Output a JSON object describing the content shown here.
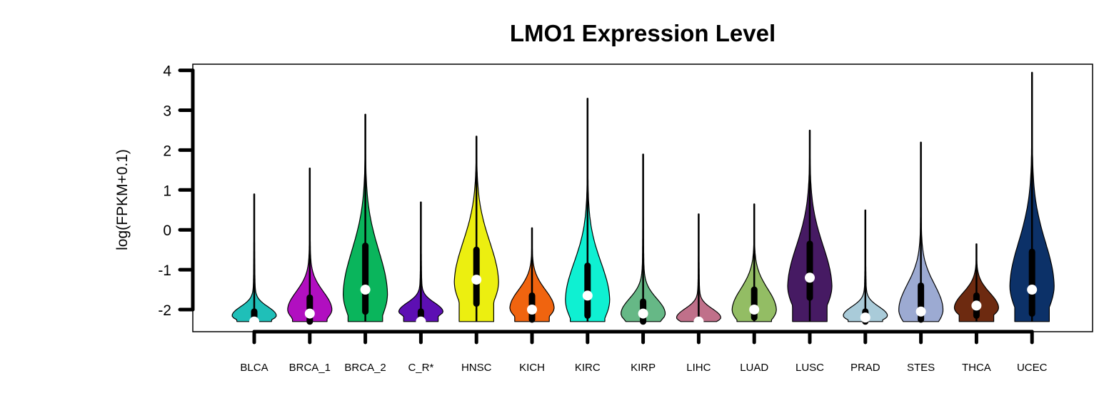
{
  "chart_data": {
    "type": "violin",
    "title": "LMO1 Expression Level",
    "xlabel": "",
    "ylabel": "log(FPKM+0.1)",
    "ylim": [
      -2.55,
      4.15
    ],
    "yticks": [
      -2,
      -1,
      0,
      1,
      2,
      3,
      4
    ],
    "grid": false,
    "legend": "none",
    "categories": [
      "BLCA",
      "BRCA_1",
      "BRCA_2",
      "C_R*",
      "HNSC",
      "KICH",
      "KIRC",
      "KIRP",
      "LIHC",
      "LUAD",
      "LUSC",
      "PRAD",
      "STES",
      "THCA",
      "UCEC"
    ],
    "series": [
      {
        "category": "BLCA",
        "color": "#1fbfb8",
        "min": -2.3,
        "max": 0.9,
        "q1": -2.3,
        "median": -2.3,
        "q3": -2.05,
        "peak": -2.15
      },
      {
        "category": "BRCA_1",
        "color": "#b10fc0",
        "min": -2.3,
        "max": 1.55,
        "q1": -2.3,
        "median": -2.1,
        "q3": -1.7,
        "peak": -2.0
      },
      {
        "category": "BRCA_2",
        "color": "#0ab55c",
        "min": -2.3,
        "max": 2.9,
        "q1": -2.05,
        "median": -1.5,
        "q3": -0.4,
        "peak": -1.6
      },
      {
        "category": "C_R*",
        "color": "#5d0fb3",
        "min": -2.3,
        "max": 0.7,
        "q1": -2.3,
        "median": -2.3,
        "q3": -2.05,
        "peak": -2.05
      },
      {
        "category": "HNSC",
        "color": "#ecef10",
        "min": -2.3,
        "max": 2.35,
        "q1": -1.85,
        "median": -1.25,
        "q3": -0.5,
        "peak": -1.3
      },
      {
        "category": "KICH",
        "color": "#f0640f",
        "min": -2.3,
        "max": 0.05,
        "q1": -2.25,
        "median": -2.0,
        "q3": -1.65,
        "peak": -1.95
      },
      {
        "category": "KIRC",
        "color": "#0ff0d2",
        "min": -2.3,
        "max": 3.3,
        "q1": -2.15,
        "median": -1.65,
        "q3": -0.9,
        "peak": -1.75
      },
      {
        "category": "KIRP",
        "color": "#66b886",
        "min": -2.3,
        "max": 1.9,
        "q1": -2.3,
        "median": -2.1,
        "q3": -1.8,
        "peak": -2.1
      },
      {
        "category": "LIHC",
        "color": "#c0708a",
        "min": -2.3,
        "max": 0.4,
        "q1": -2.3,
        "median": -2.3,
        "q3": -2.3,
        "peak": -2.2
      },
      {
        "category": "LUAD",
        "color": "#93bd64",
        "min": -2.3,
        "max": 0.65,
        "q1": -2.2,
        "median": -2.0,
        "q3": -1.5,
        "peak": -2.0
      },
      {
        "category": "LUSC",
        "color": "#461a63",
        "min": -2.3,
        "max": 2.5,
        "q1": -1.7,
        "median": -1.2,
        "q3": -0.35,
        "peak": -1.4
      },
      {
        "category": "PRAD",
        "color": "#a9cbd9",
        "min": -2.3,
        "max": 0.5,
        "q1": -2.3,
        "median": -2.2,
        "q3": -2.05,
        "peak": -2.15
      },
      {
        "category": "STES",
        "color": "#9caad2",
        "min": -2.3,
        "max": 2.2,
        "q1": -2.25,
        "median": -2.05,
        "q3": -1.4,
        "peak": -2.0
      },
      {
        "category": "THCA",
        "color": "#6d2a10",
        "min": -2.3,
        "max": -0.35,
        "q1": -2.15,
        "median": -1.9,
        "q3": -1.65,
        "peak": -1.95
      },
      {
        "category": "UCEC",
        "color": "#0c3168",
        "min": -2.3,
        "max": 3.95,
        "q1": -2.1,
        "median": -1.5,
        "q3": -0.55,
        "peak": -1.4
      }
    ]
  }
}
